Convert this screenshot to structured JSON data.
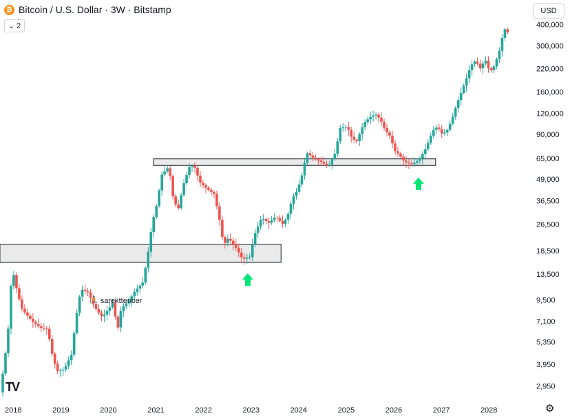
{
  "header": {
    "coin_symbol": "₿",
    "title": "Bitcoin / U.S. Dollar · 3W · Bitstamp",
    "level_value": "2",
    "currency": "USD"
  },
  "watermark": "sarekttencer",
  "icons": {
    "coin": "bitcoin-icon",
    "collapse": "chevron-down-icon",
    "brand": "tradingview-logo-icon",
    "settings": "gear-icon",
    "arrows": "green-up-arrow-icon"
  },
  "colors": {
    "up": "#26a69a",
    "down": "#ef5350",
    "arrow": "#00e676",
    "zone_fill": "#e5e5e5",
    "zone_stroke": "#131722"
  },
  "chart_data": {
    "type": "candlestick",
    "title": "Bitcoin / U.S. Dollar · 3W · Bitstamp",
    "y_scale": "log",
    "ylim": [
      2500,
      430000
    ],
    "y_ticks": [
      400000,
      300000,
      220000,
      160000,
      120000,
      90000,
      65000,
      49000,
      36500,
      26500,
      18500,
      13500,
      9500,
      7100,
      5350,
      3950,
      2950
    ],
    "y_tick_labels": [
      "400,000",
      "300,000",
      "220,000",
      "160,000",
      "120,000",
      "90,000",
      "65,000",
      "49,000",
      "36,500",
      "26,500",
      "18,500",
      "13,500",
      "9,500",
      "7,100",
      "5,350",
      "3,950",
      "2,950"
    ],
    "xlim": [
      2017.75,
      2028.75
    ],
    "x_ticks": [
      2018,
      2019,
      2020,
      2021,
      2022,
      2023,
      2024,
      2025,
      2026,
      2027,
      2028
    ],
    "x_tick_labels": [
      "2018",
      "2019",
      "2020",
      "2021",
      "2022",
      "2023",
      "2024",
      "2025",
      "2026",
      "2027",
      "2028"
    ],
    "path_points": [
      [
        2017.75,
        2700
      ],
      [
        2017.85,
        4200
      ],
      [
        2017.95,
        7500
      ],
      [
        2018.0,
        15000
      ],
      [
        2018.1,
        11000
      ],
      [
        2018.2,
        8500
      ],
      [
        2018.3,
        7800
      ],
      [
        2018.45,
        7000
      ],
      [
        2018.6,
        6500
      ],
      [
        2018.75,
        6400
      ],
      [
        2018.85,
        4500
      ],
      [
        2018.95,
        3600
      ],
      [
        2019.1,
        3700
      ],
      [
        2019.25,
        4500
      ],
      [
        2019.35,
        7500
      ],
      [
        2019.45,
        11000
      ],
      [
        2019.6,
        10500
      ],
      [
        2019.75,
        8500
      ],
      [
        2019.9,
        7500
      ],
      [
        2020.05,
        8500
      ],
      [
        2020.15,
        9500
      ],
      [
        2020.2,
        5800
      ],
      [
        2020.3,
        8500
      ],
      [
        2020.45,
        9300
      ],
      [
        2020.6,
        10800
      ],
      [
        2020.75,
        12000
      ],
      [
        2020.85,
        17000
      ],
      [
        2020.95,
        27000
      ],
      [
        2021.05,
        35000
      ],
      [
        2021.15,
        52000
      ],
      [
        2021.3,
        58000
      ],
      [
        2021.4,
        36000
      ],
      [
        2021.5,
        33000
      ],
      [
        2021.6,
        45000
      ],
      [
        2021.75,
        60000
      ],
      [
        2021.85,
        57000
      ],
      [
        2021.95,
        47000
      ],
      [
        2022.1,
        43000
      ],
      [
        2022.25,
        40000
      ],
      [
        2022.35,
        30000
      ],
      [
        2022.45,
        20000
      ],
      [
        2022.55,
        22000
      ],
      [
        2022.7,
        19500
      ],
      [
        2022.85,
        16500
      ],
      [
        2023.0,
        17000
      ],
      [
        2023.1,
        23000
      ],
      [
        2023.25,
        29000
      ],
      [
        2023.4,
        27000
      ],
      [
        2023.55,
        29500
      ],
      [
        2023.7,
        26500
      ],
      [
        2023.8,
        30000
      ],
      [
        2023.9,
        38000
      ],
      [
        2024.0,
        42000
      ],
      [
        2024.1,
        52000
      ],
      [
        2024.2,
        70000
      ],
      [
        2024.35,
        65000
      ],
      [
        2024.5,
        62000
      ],
      [
        2024.65,
        58000
      ],
      [
        2024.8,
        70000
      ],
      [
        2024.9,
        98000
      ],
      [
        2025.05,
        100000
      ],
      [
        2025.15,
        85000
      ],
      [
        2025.25,
        82000
      ],
      [
        2025.4,
        105000
      ],
      [
        2025.55,
        115000
      ],
      [
        2025.65,
        118000
      ],
      [
        2025.75,
        110000
      ],
      [
        2025.85,
        95000
      ],
      [
        2025.95,
        88000
      ],
      [
        2026.05,
        72000
      ],
      [
        2026.15,
        68000
      ],
      [
        2026.25,
        62000
      ],
      [
        2026.4,
        60000
      ],
      [
        2026.5,
        62000
      ],
      [
        2026.6,
        66000
      ],
      [
        2026.72,
        76000
      ],
      [
        2026.85,
        95000
      ],
      [
        2026.95,
        100000
      ],
      [
        2027.05,
        90000
      ],
      [
        2027.15,
        95000
      ],
      [
        2027.25,
        110000
      ],
      [
        2027.35,
        135000
      ],
      [
        2027.45,
        160000
      ],
      [
        2027.55,
        190000
      ],
      [
        2027.65,
        230000
      ],
      [
        2027.75,
        245000
      ],
      [
        2027.85,
        220000
      ],
      [
        2027.95,
        250000
      ],
      [
        2028.05,
        210000
      ],
      [
        2028.15,
        230000
      ],
      [
        2028.25,
        280000
      ],
      [
        2028.35,
        380000
      ],
      [
        2028.42,
        360000
      ]
    ],
    "zones": [
      {
        "x_start": 2017.72,
        "x_end": 2023.63,
        "y_low": 15800,
        "y_high": 20200
      },
      {
        "x_start": 2020.95,
        "x_end": 2026.88,
        "y_low": 59000,
        "y_high": 64500
      }
    ],
    "arrows": [
      {
        "x": 2022.93,
        "y": 12500
      },
      {
        "x": 2026.52,
        "y": 46000
      }
    ]
  }
}
